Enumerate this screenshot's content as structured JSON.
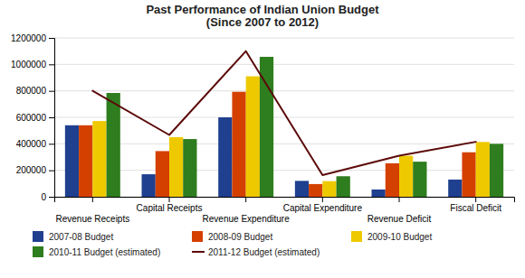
{
  "chart_data": {
    "type": "bar",
    "title": "Past Performance of Indian Union Budget\n(Since 2007 to 2012)",
    "categories": [
      "Revenue Receipts",
      "Capital Receipts",
      "Revenue Expenditure",
      "Capital Expenditure",
      "Revenue Deficit",
      "Fiscal Deficit"
    ],
    "series": [
      {
        "name": "2007-08 Budget",
        "type": "bar",
        "color": "#1F3F8F",
        "values": [
          540000,
          170000,
          600000,
          120000,
          55000,
          130000
        ]
      },
      {
        "name": "2008-09 Budget",
        "type": "bar",
        "color": "#D44000",
        "values": [
          540000,
          345000,
          793000,
          96000,
          253000,
          336000
        ]
      },
      {
        "name": "2009-10 Budget",
        "type": "bar",
        "color": "#EEC900",
        "values": [
          572000,
          450000,
          910000,
          118000,
          310000,
          414000
        ]
      },
      {
        "name": "2010-11 Budget (estimated)",
        "type": "bar",
        "color": "#2E7D1E",
        "values": [
          784000,
          436000,
          1057000,
          155000,
          265000,
          400000
        ]
      },
      {
        "name": "2011-12 Budget (estimated)",
        "type": "line",
        "color": "#5C0A0A",
        "values": [
          800000,
          467000,
          1100000,
          163000,
          310000,
          415000
        ]
      }
    ],
    "ylim": [
      0,
      1200000
    ],
    "yticks": [
      0,
      200000,
      400000,
      600000,
      800000,
      1000000,
      1200000
    ],
    "grid": true,
    "legend": "bottom"
  }
}
